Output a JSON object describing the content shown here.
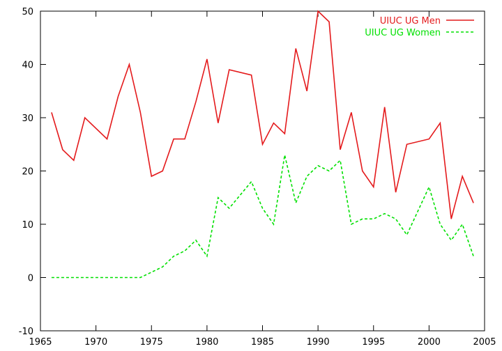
{
  "chart_data": {
    "type": "line",
    "title": "",
    "xlabel": "",
    "ylabel": "",
    "xlim": [
      1965,
      2005
    ],
    "ylim": [
      -10,
      50
    ],
    "xticks": [
      1965,
      1970,
      1975,
      1980,
      1985,
      1990,
      1995,
      2000,
      2005
    ],
    "yticks": [
      -10,
      0,
      10,
      20,
      30,
      40,
      50
    ],
    "grid": false,
    "legend_position": "top-right",
    "x": [
      1966,
      1967,
      1968,
      1969,
      1970,
      1971,
      1972,
      1973,
      1974,
      1975,
      1976,
      1977,
      1978,
      1979,
      1980,
      1981,
      1982,
      1983,
      1984,
      1985,
      1986,
      1987,
      1988,
      1989,
      1990,
      1991,
      1992,
      1993,
      1994,
      1995,
      1996,
      1997,
      1998,
      1999,
      2000,
      2001,
      2002,
      2003,
      2004
    ],
    "series": [
      {
        "name": "UIUC UG Men",
        "color": "#e41a1c",
        "dashed": false,
        "values": [
          31,
          24,
          22,
          30,
          null,
          26,
          34,
          40,
          31,
          19,
          20,
          26,
          26,
          33,
          41,
          29,
          39,
          null,
          38,
          25,
          29,
          27,
          43,
          35,
          50,
          48,
          24,
          31,
          20,
          17,
          32,
          16,
          25,
          null,
          26,
          29,
          11,
          19,
          14
        ]
      },
      {
        "name": "UIUC UG Women",
        "color": "#00e000",
        "dashed": true,
        "values": [
          0,
          0,
          0,
          0,
          0,
          0,
          0,
          0,
          0,
          1,
          2,
          4,
          5,
          7,
          4,
          15,
          13,
          null,
          18,
          13,
          10,
          23,
          14,
          19,
          21,
          20,
          22,
          10,
          11,
          11,
          12,
          11,
          8,
          null,
          17,
          10,
          7,
          10,
          4
        ]
      }
    ]
  }
}
